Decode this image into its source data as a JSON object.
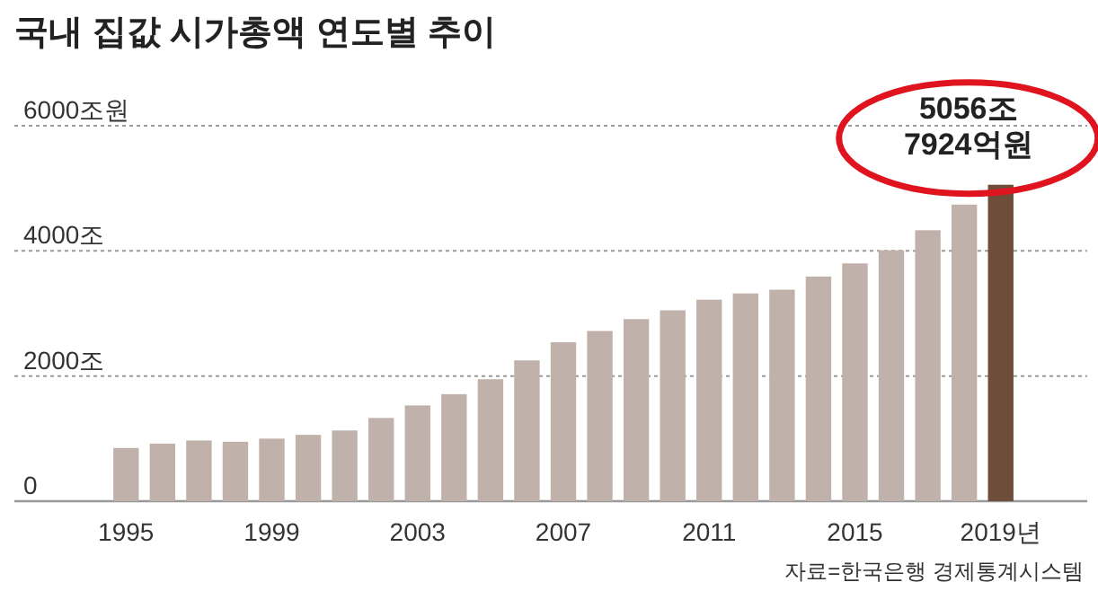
{
  "chart_data": {
    "type": "bar",
    "title": "국내 집값 시가총액 연도별 추이",
    "categories": [
      "1995",
      null,
      null,
      null,
      "1999",
      null,
      null,
      null,
      "2003",
      null,
      null,
      null,
      "2007",
      null,
      null,
      null,
      "2011",
      null,
      null,
      null,
      "2015",
      null,
      null,
      null,
      "2019년"
    ],
    "values": [
      850,
      920,
      970,
      950,
      1000,
      1060,
      1130,
      1330,
      1530,
      1710,
      1950,
      2250,
      2540,
      2720,
      2910,
      3050,
      3220,
      3320,
      3380,
      3590,
      3800,
      4010,
      4330,
      4740,
      5056.7924
    ],
    "colors": [
      "#c0b2aa",
      "#c0b2aa",
      "#c0b2aa",
      "#c0b2aa",
      "#c0b2aa",
      "#c0b2aa",
      "#c0b2aa",
      "#c0b2aa",
      "#c0b2aa",
      "#c0b2aa",
      "#c0b2aa",
      "#c0b2aa",
      "#c0b2aa",
      "#c0b2aa",
      "#c0b2aa",
      "#c0b2aa",
      "#c0b2aa",
      "#c0b2aa",
      "#c0b2aa",
      "#c0b2aa",
      "#c0b2aa",
      "#c0b2aa",
      "#c0b2aa",
      "#c0b2aa",
      "#6e4e3b"
    ],
    "ylim": [
      0,
      6000
    ],
    "yticks": [
      0,
      {
        "value": 2000,
        "label": "2000조"
      },
      {
        "value": 4000,
        "label": "4000조"
      },
      {
        "value": 6000,
        "label": "6000조원"
      }
    ],
    "grid": "y",
    "annotations": [
      {
        "text": "5056조 7924억원",
        "x": "2019년",
        "y": 5056.7924
      },
      "자료=한국은행 경제통계시스템"
    ]
  }
}
